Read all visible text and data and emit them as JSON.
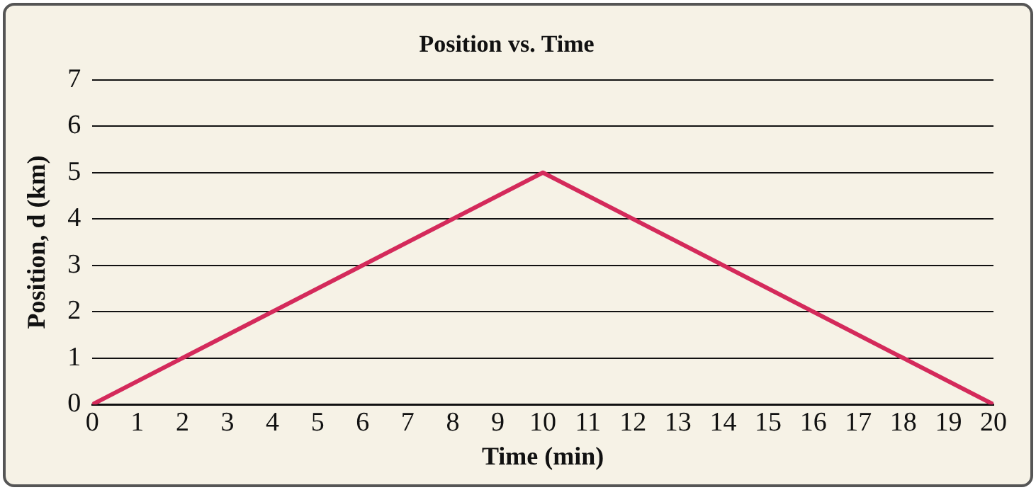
{
  "chart_data": {
    "type": "line",
    "title": "Position vs. Time",
    "xlabel": "Time (min)",
    "ylabel": "Position, d (km)",
    "x": [
      0,
      10,
      20
    ],
    "series": [
      {
        "color": "#d42a5b",
        "values": [
          0,
          5,
          0
        ]
      }
    ],
    "xlim": [
      0,
      20
    ],
    "xticks": [
      0,
      1,
      2,
      3,
      4,
      5,
      6,
      7,
      8,
      9,
      10,
      11,
      12,
      13,
      14,
      15,
      16,
      17,
      18,
      19,
      20
    ],
    "ylim": [
      0,
      7
    ],
    "yticks": [
      0,
      1,
      2,
      3,
      4,
      5,
      6,
      7
    ],
    "grid": "y",
    "legend": false,
    "marker": "none",
    "line_style": "solid"
  }
}
